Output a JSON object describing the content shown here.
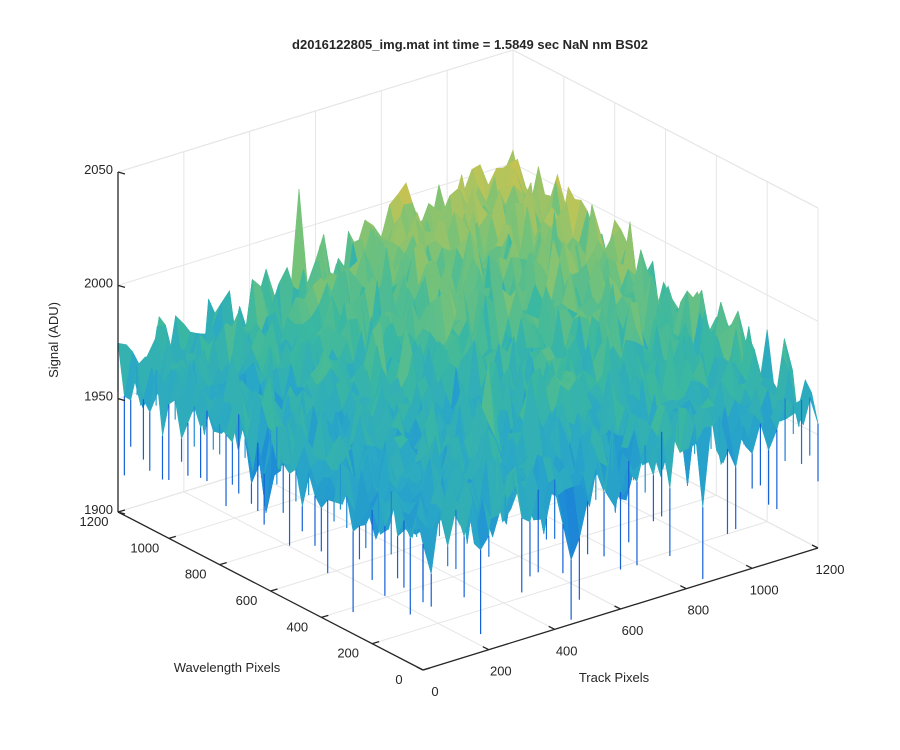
{
  "chart_data": {
    "type": "surface",
    "title": "d2016122805_img.mat int time = 1.5849 sec  NaN nm BS02",
    "xlabel": "Track Pixels",
    "ylabel": "Wavelength Pixels",
    "zlabel": "Signal (ADU)",
    "xlim": [
      0,
      1200
    ],
    "ylim": [
      0,
      1200
    ],
    "zlim": [
      1900,
      2050
    ],
    "xticks": [
      "0",
      "200",
      "400",
      "600",
      "800",
      "1000",
      "1200"
    ],
    "yticks": [
      "0",
      "200",
      "400",
      "600",
      "800",
      "1000",
      "1200"
    ],
    "zticks": [
      "1900",
      "1950",
      "2000",
      "2050"
    ],
    "grid": true,
    "colormap": [
      "#1560d8",
      "#1f8ed6",
      "#2aa8c6",
      "#3bb8a0",
      "#74c27a",
      "#b8c45a",
      "#e0bd3f"
    ],
    "surface_samples": {
      "description_free_summary": [
        {
          "track": 0,
          "wavelength": 0,
          "signal": 1958
        },
        {
          "track": 0,
          "wavelength": 1200,
          "signal": 1962
        },
        {
          "track": 1200,
          "wavelength": 0,
          "signal": 1962
        },
        {
          "track": 1200,
          "wavelength": 1200,
          "signal": 1995
        },
        {
          "track": 600,
          "wavelength": 600,
          "signal": 1975
        }
      ],
      "noise_amplitude": 12
    }
  }
}
